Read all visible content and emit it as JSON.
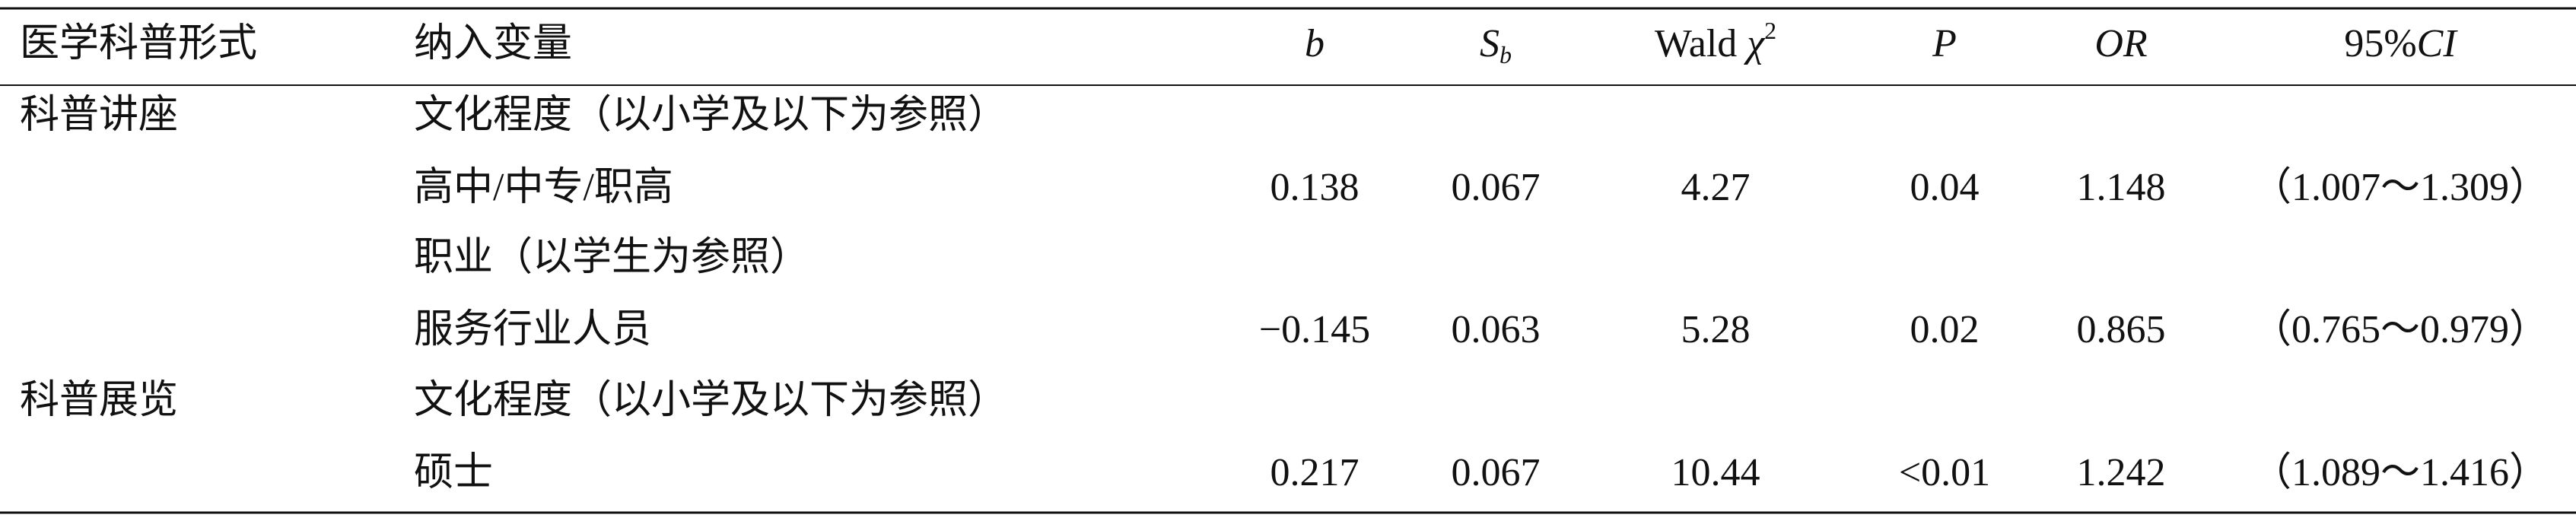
{
  "header": {
    "cells": [
      {
        "parts": [
          {
            "text": "医学科普形式"
          }
        ]
      },
      {
        "parts": [
          {
            "text": "纳入变量"
          }
        ]
      },
      {
        "parts": [
          {
            "text": "b",
            "italic": true
          }
        ]
      },
      {
        "parts": [
          {
            "text": "S",
            "italic": true
          },
          {
            "text": "b",
            "italic": true,
            "sub": true
          }
        ]
      },
      {
        "parts": [
          {
            "text": "Wald "
          },
          {
            "text": "χ",
            "italic": true
          },
          {
            "text": "2",
            "sup": true
          }
        ]
      },
      {
        "parts": [
          {
            "text": "P",
            "italic": true
          }
        ]
      },
      {
        "parts": [
          {
            "text": "OR",
            "italic": true
          }
        ]
      },
      {
        "parts": [
          {
            "text": "95%"
          },
          {
            "text": "CI",
            "italic": true
          }
        ]
      }
    ]
  },
  "table": {
    "rows": [
      {
        "form": "科普讲座",
        "variable": "文化程度（以小学及以下为参照）"
      },
      {
        "variable": "高中/中专/职高",
        "b": "0.138",
        "sb": "0.067",
        "wald": "4.27",
        "p": "0.04",
        "or": "1.148",
        "ci": "（1.007～1.309）"
      },
      {
        "variable": "职业（以学生为参照）"
      },
      {
        "variable": "服务行业人员",
        "b": "−0.145",
        "sb": "0.063",
        "wald": "5.28",
        "p": "0.02",
        "or": "0.865",
        "ci": "（0.765～0.979）"
      },
      {
        "form": "科普展览",
        "variable": "文化程度（以小学及以下为参照）"
      },
      {
        "variable": "硕士",
        "b": "0.217",
        "sb": "0.067",
        "wald": "10.44",
        "p": "<0.01",
        "or": "1.242",
        "ci": "（1.089～1.416）"
      }
    ]
  }
}
